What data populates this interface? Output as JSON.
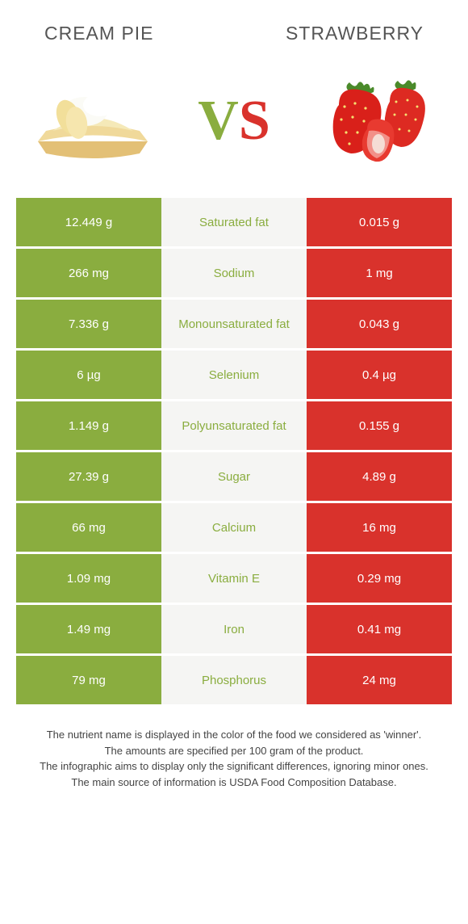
{
  "colors": {
    "green": "#8aad3f",
    "red": "#d9322c",
    "mid_bg": "#f5f5f3",
    "text_dark": "#555555",
    "white": "#ffffff"
  },
  "header": {
    "left_title": "Cream Pie",
    "right_title": "Strawberry"
  },
  "vs": {
    "v": "V",
    "s": "S"
  },
  "rows": [
    {
      "left": "12.449 g",
      "label": "Saturated fat",
      "right": "0.015 g",
      "winner": "green"
    },
    {
      "left": "266 mg",
      "label": "Sodium",
      "right": "1 mg",
      "winner": "green"
    },
    {
      "left": "7.336 g",
      "label": "Monounsaturated fat",
      "right": "0.043 g",
      "winner": "green"
    },
    {
      "left": "6 µg",
      "label": "Selenium",
      "right": "0.4 µg",
      "winner": "green"
    },
    {
      "left": "1.149 g",
      "label": "Polyunsaturated fat",
      "right": "0.155 g",
      "winner": "green"
    },
    {
      "left": "27.39 g",
      "label": "Sugar",
      "right": "4.89 g",
      "winner": "green"
    },
    {
      "left": "66 mg",
      "label": "Calcium",
      "right": "16 mg",
      "winner": "green"
    },
    {
      "left": "1.09 mg",
      "label": "Vitamin E",
      "right": "0.29 mg",
      "winner": "green"
    },
    {
      "left": "1.49 mg",
      "label": "Iron",
      "right": "0.41 mg",
      "winner": "green"
    },
    {
      "left": "79 mg",
      "label": "Phosphorus",
      "right": "24 mg",
      "winner": "green"
    }
  ],
  "footer": {
    "line1": "The nutrient name is displayed in the color of the food we considered as 'winner'.",
    "line2": "The amounts are specified per 100 gram of the product.",
    "line3": "The infographic aims to display only the significant differences, ignoring minor ones.",
    "line4": "The main source of information is USDA Food Composition Database."
  }
}
